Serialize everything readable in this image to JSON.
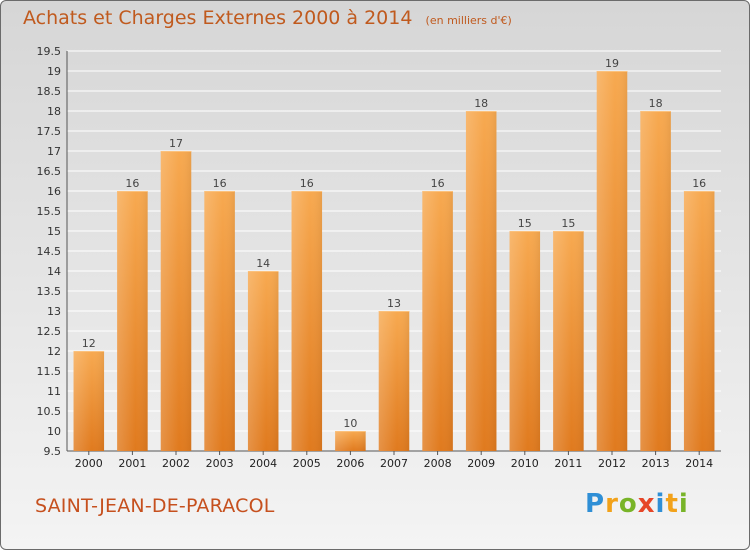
{
  "chart_data": {
    "type": "bar",
    "title": "Achats et Charges Externes 2000 à 2014",
    "subtitle": "(en milliers d'€)",
    "categories": [
      "2000",
      "2001",
      "2002",
      "2003",
      "2004",
      "2005",
      "2006",
      "2007",
      "2008",
      "2009",
      "2010",
      "2011",
      "2012",
      "2013",
      "2014"
    ],
    "values": [
      12,
      16,
      17,
      16,
      14,
      16,
      10,
      13,
      16,
      18,
      15,
      15,
      19,
      18,
      16
    ],
    "data_labels": [
      "12",
      "16",
      "17",
      "16",
      "14",
      "16",
      "10",
      "13",
      "16",
      "18",
      "15",
      "15",
      "19",
      "18",
      "16"
    ],
    "ylim": [
      9.5,
      19.5
    ],
    "yticks": [
      9.5,
      10,
      10.5,
      11,
      11.5,
      12,
      12.5,
      13,
      13.5,
      14,
      14.5,
      15,
      15.5,
      16,
      16.5,
      17,
      17.5,
      18,
      18.5,
      19,
      19.5
    ],
    "ytick_labels": [
      "9.5",
      "10",
      "10.5",
      "11",
      "11.5",
      "12",
      "12.5",
      "13",
      "13.5",
      "14",
      "14.5",
      "15",
      "15.5",
      "16",
      "16.5",
      "17",
      "17.5",
      "18",
      "18.5",
      "19",
      "19.5"
    ],
    "grid": true,
    "colors": {
      "bar_light": "#f7a950",
      "bar_dark": "#e07a1e",
      "grid": "#ffffff",
      "title": "#c05a1e"
    }
  },
  "footer": {
    "commune": "SAINT-JEAN-DE-PARACOL",
    "brand_letters": [
      {
        "ch": "P",
        "color": "#2f8fd6"
      },
      {
        "ch": "r",
        "color": "#f2a21a"
      },
      {
        "ch": "o",
        "color": "#78b428"
      },
      {
        "ch": "x",
        "color": "#e64628"
      },
      {
        "ch": "i",
        "color": "#2f8fd6"
      },
      {
        "ch": "t",
        "color": "#f2a21a"
      },
      {
        "ch": "i",
        "color": "#78b428"
      }
    ]
  }
}
